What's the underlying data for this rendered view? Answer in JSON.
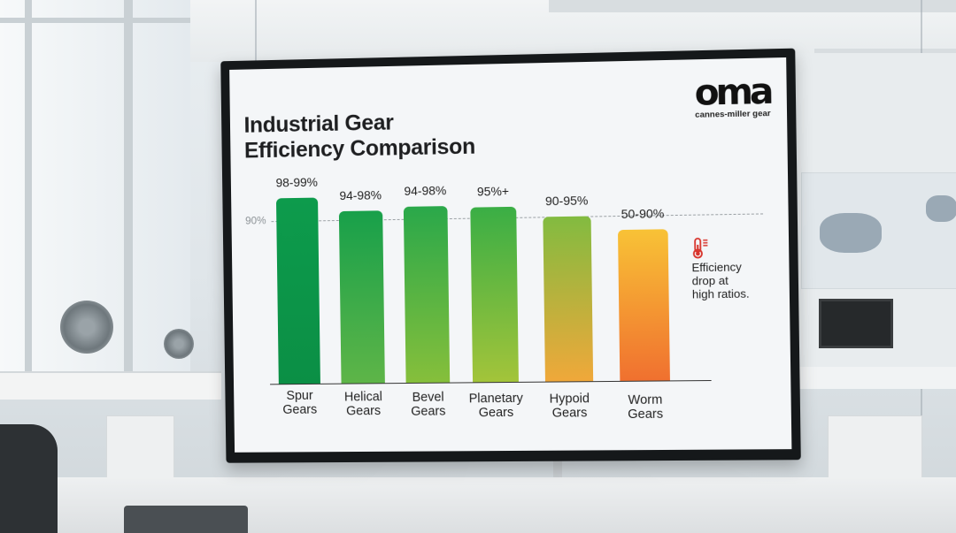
{
  "screen": {
    "title_line1": "Industrial Gear",
    "title_line2": "Efficiency Comparison",
    "logo": {
      "mark": "oma",
      "subtitle": "cannes-miller gear"
    },
    "reference_line_label": "90%",
    "annotation": {
      "icon": "thermometer-icon",
      "text_line1": "Efficiency",
      "text_line2": "drop at",
      "text_line3": "high ratios."
    }
  },
  "chart_data": {
    "type": "bar",
    "title": "Industrial Gear Efficiency Comparison",
    "xlabel": "",
    "ylabel": "",
    "categories": [
      "Spur Gears",
      "Helical Gears",
      "Bevel Gears",
      "Planetary Gears",
      "Hypoid Gears",
      "Worm Gears"
    ],
    "category_lines": [
      [
        "Spur",
        "Gears"
      ],
      [
        "Helical",
        "Gears"
      ],
      [
        "Bevel",
        "Gears"
      ],
      [
        "Planetary",
        "Gears"
      ],
      [
        "Hypoid",
        "Gears"
      ],
      [
        "Worm",
        "Gears"
      ]
    ],
    "value_labels": [
      "98-99%",
      "94-98%",
      "94-98%",
      "95%+",
      "90-95%",
      "50-90%"
    ],
    "values_range": [
      [
        98,
        99
      ],
      [
        94,
        98
      ],
      [
        94,
        98
      ],
      [
        95,
        100
      ],
      [
        90,
        95
      ],
      [
        50,
        90
      ]
    ],
    "reference_line": {
      "value": 90,
      "label": "90%",
      "style": "dashed"
    },
    "annotations": [
      {
        "target": "Worm Gears",
        "text": "Efficiency drop at high ratios.",
        "icon": "thermometer"
      }
    ],
    "colors": [
      "#0f9a4a",
      "#21a84a",
      "#3db346",
      "#6cb93e",
      "#9fc13a",
      "#f6b233"
    ],
    "grid": false,
    "legend": "none"
  }
}
